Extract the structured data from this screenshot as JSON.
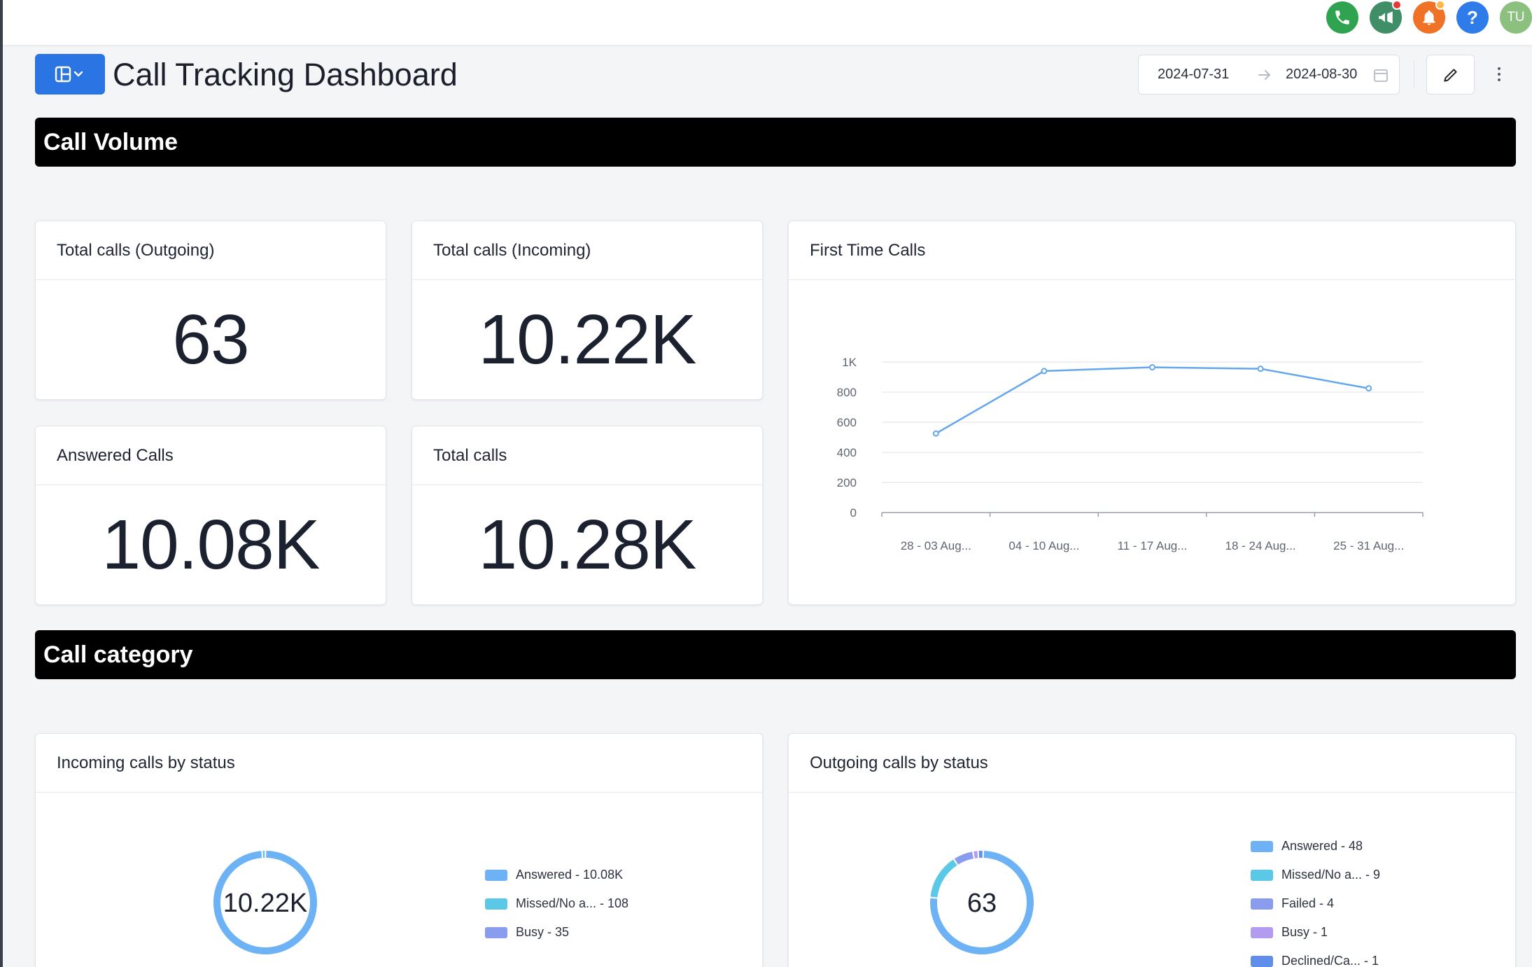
{
  "topbar": {
    "icons": [
      "phone-icon",
      "megaphone-icon",
      "bell-icon",
      "help-icon"
    ],
    "avatar_initials": "TU",
    "help_glyph": "?"
  },
  "header": {
    "title": "Call Tracking Dashboard",
    "date_start": "2024-07-31",
    "date_end": "2024-08-30",
    "accent_color": "#2b74e4"
  },
  "sections": {
    "call_volume": "Call Volume",
    "call_category": "Call category"
  },
  "kpis": {
    "outgoing": {
      "title": "Total calls (Outgoing)",
      "value": "63"
    },
    "incoming": {
      "title": "Total calls (Incoming)",
      "value": "10.22K"
    },
    "answered": {
      "title": "Answered Calls",
      "value": "10.08K"
    },
    "total": {
      "title": "Total calls",
      "value": "10.28K"
    }
  },
  "first_time_calls": {
    "title": "First Time Calls"
  },
  "incoming_status": {
    "title": "Incoming calls by status",
    "center": "10.22K",
    "legend": [
      "Answered - 10.08K",
      "Missed/No a... - 108",
      "Busy - 35"
    ]
  },
  "outgoing_status": {
    "title": "Outgoing calls by status",
    "center": "63",
    "legend": [
      "Answered - 48",
      "Missed/No a... - 9",
      "Failed - 4",
      "Busy - 1",
      "Declined/Ca... - 1"
    ]
  },
  "chart_data": [
    {
      "type": "line",
      "title": "First Time Calls",
      "categories": [
        "28 - 03 Aug...",
        "04 - 10 Aug...",
        "11 - 17 Aug...",
        "18 - 24 Aug...",
        "25 - 31 Aug..."
      ],
      "values": [
        525,
        940,
        965,
        955,
        825
      ],
      "ylim": [
        0,
        1000
      ],
      "yticks": [
        "0",
        "200",
        "400",
        "600",
        "800",
        "1K"
      ],
      "ytick_values": [
        0,
        200,
        400,
        600,
        800,
        1000
      ],
      "grid": true,
      "color": "#64a7ec"
    },
    {
      "type": "pie",
      "title": "Incoming calls by status",
      "categories": [
        "Answered",
        "Missed/No a...",
        "Busy"
      ],
      "values": [
        10080,
        108,
        35
      ],
      "colors": [
        "#6cb2f4",
        "#5bc8e8",
        "#8a9cee"
      ]
    },
    {
      "type": "pie",
      "title": "Outgoing calls by status",
      "categories": [
        "Answered",
        "Missed/No a...",
        "Failed",
        "Busy",
        "Declined/Ca..."
      ],
      "values": [
        48,
        9,
        4,
        1,
        1
      ],
      "colors": [
        "#6cb2f4",
        "#5bc8e8",
        "#8a9cee",
        "#b39bf0",
        "#5f8fe8"
      ]
    }
  ]
}
